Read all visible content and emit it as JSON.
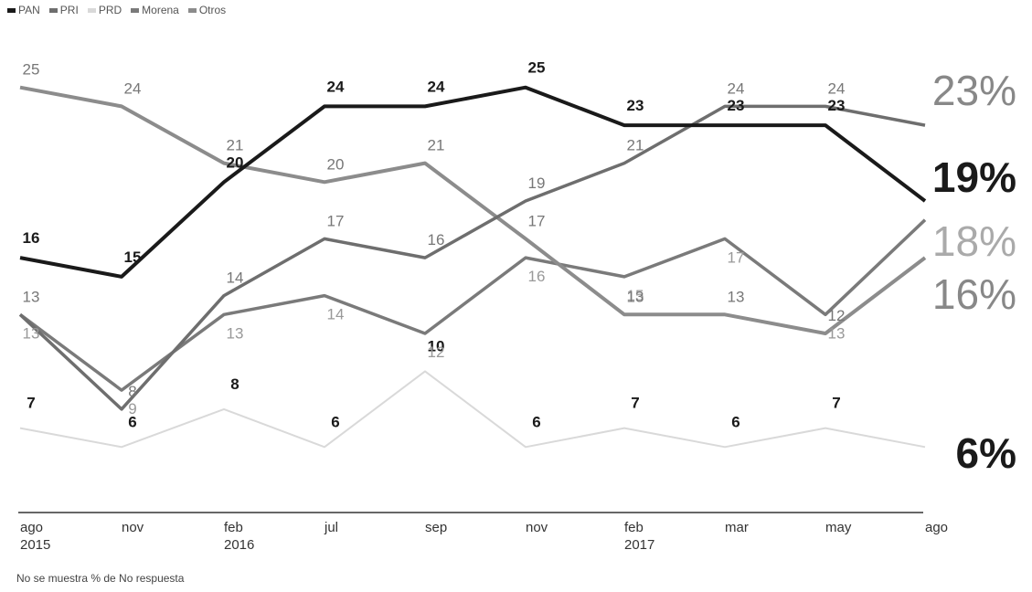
{
  "chart_data": {
    "type": "line",
    "legend": [
      "PAN",
      "PRI",
      "PRD",
      "Morena",
      "Otros"
    ],
    "categories": [
      "ago 2015",
      "nov",
      "feb 2016",
      "jul",
      "sep",
      "nov",
      "feb 2017",
      "mar",
      "may",
      "ago"
    ],
    "x_tick_labels": [
      [
        "ago",
        "2015"
      ],
      [
        "nov"
      ],
      [
        "feb",
        "2016"
      ],
      [
        "jul"
      ],
      [
        "sep"
      ],
      [
        "nov"
      ],
      [
        "feb",
        "2017"
      ],
      [
        "mar"
      ],
      [
        "may"
      ],
      [
        "ago"
      ]
    ],
    "series": [
      {
        "name": "PAN",
        "color": "#1a1a1a",
        "values": [
          16,
          15,
          20,
          24,
          24,
          25,
          23,
          23,
          23,
          19
        ],
        "labels": [
          "16",
          "15",
          "20",
          "24",
          "24",
          "25",
          "23",
          "23",
          "23",
          ""
        ],
        "end_label": "19%"
      },
      {
        "name": "PRI",
        "color": "#6e6e6e",
        "values": [
          13,
          8,
          14,
          17,
          16,
          19,
          21,
          24,
          24,
          23
        ],
        "labels": [
          "13",
          "8",
          "14",
          "17",
          "16",
          "19",
          "21",
          "24",
          "24",
          ""
        ],
        "end_label": "23%"
      },
      {
        "name": "PRD",
        "color": "#d9d9d9",
        "values": [
          7,
          6,
          8,
          6,
          10,
          6,
          7,
          6,
          7,
          6
        ],
        "labels": [
          "7",
          "6",
          "8",
          "6",
          "10",
          "6",
          "7",
          "6",
          "7",
          ""
        ],
        "end_label": "6%"
      },
      {
        "name": "Morena",
        "color": "#7a7a7a",
        "values": [
          13,
          9,
          13,
          14,
          12,
          16,
          15,
          17,
          13,
          18
        ],
        "labels": [
          "13",
          "9",
          "13",
          "14",
          "12",
          "16",
          "15",
          "17",
          "13",
          ""
        ],
        "end_label": "18%"
      },
      {
        "name": "Otros",
        "color": "#8c8c8c",
        "values": [
          25,
          24,
          21,
          20,
          21,
          17,
          13,
          13,
          12,
          16
        ],
        "labels": [
          "25",
          "24",
          "21",
          "20",
          "21",
          "17",
          "13",
          "13",
          "12",
          ""
        ],
        "end_label": "16%"
      }
    ],
    "ylim": [
      5,
      26
    ],
    "grid": false,
    "legend_position": "top-left"
  },
  "footnote": "No se muestra % de No respuesta"
}
